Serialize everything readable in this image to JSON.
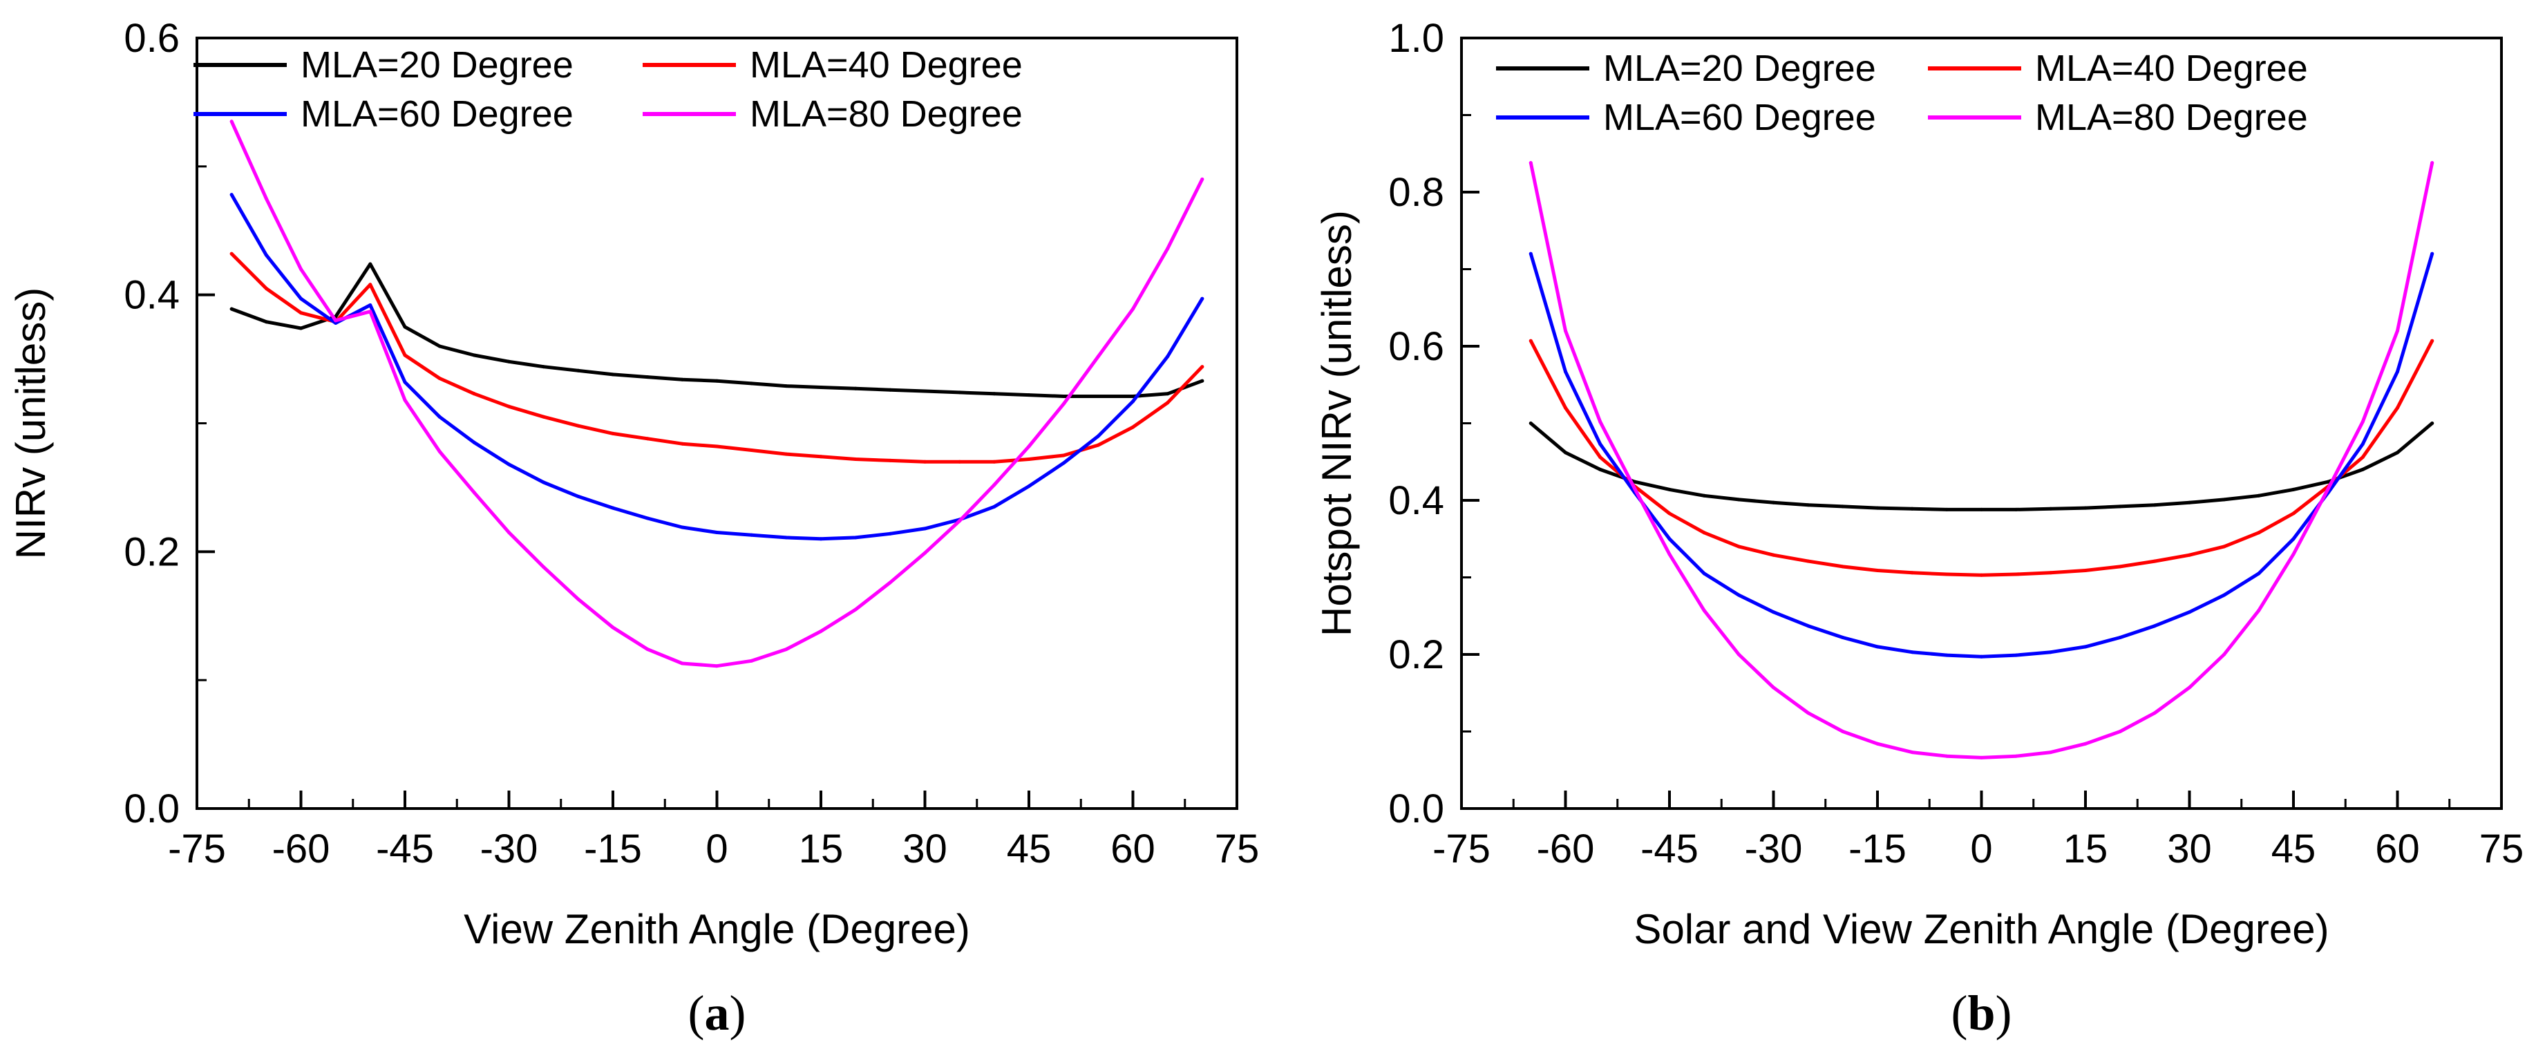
{
  "chart_data": [
    {
      "type": "line",
      "panel": "a",
      "caption": {
        "open": "(",
        "letter": "a",
        "close": ")"
      },
      "xlabel": "View Zenith Angle (Degree)",
      "ylabel": "NIRv (unitless)",
      "xlim": [
        -75,
        75
      ],
      "ylim": [
        0,
        0.6
      ],
      "xticks": [
        "-75",
        "-60",
        "-45",
        "-30",
        "-15",
        "0",
        "15",
        "30",
        "45",
        "60",
        "75"
      ],
      "yticks": [
        "0.0",
        "0.2",
        "0.4",
        "0.6"
      ],
      "x": [
        -70,
        -65,
        -60,
        -55,
        -50,
        -45,
        -40,
        -35,
        -30,
        -25,
        -20,
        -15,
        -10,
        -5,
        0,
        5,
        10,
        15,
        20,
        25,
        30,
        35,
        40,
        45,
        50,
        55,
        60,
        65,
        70
      ],
      "series": [
        {
          "name": "MLA=20 Degree",
          "color": "#000000",
          "values": [
            0.389,
            0.379,
            0.374,
            0.383,
            0.424,
            0.375,
            0.36,
            0.353,
            0.348,
            0.344,
            0.341,
            0.338,
            0.336,
            0.334,
            0.333,
            0.331,
            0.329,
            0.328,
            0.327,
            0.326,
            0.325,
            0.324,
            0.323,
            0.322,
            0.321,
            0.321,
            0.321,
            0.323,
            0.333
          ]
        },
        {
          "name": "MLA=40 Degree",
          "color": "#ff0000",
          "values": [
            0.432,
            0.405,
            0.386,
            0.379,
            0.408,
            0.353,
            0.335,
            0.323,
            0.313,
            0.305,
            0.298,
            0.292,
            0.288,
            0.284,
            0.282,
            0.279,
            0.276,
            0.274,
            0.272,
            0.271,
            0.27,
            0.27,
            0.27,
            0.272,
            0.275,
            0.283,
            0.297,
            0.316,
            0.344
          ]
        },
        {
          "name": "MLA=60 Degree",
          "color": "#0000ff",
          "values": [
            0.478,
            0.431,
            0.397,
            0.378,
            0.392,
            0.332,
            0.305,
            0.285,
            0.268,
            0.254,
            0.243,
            0.234,
            0.226,
            0.219,
            0.215,
            0.213,
            0.211,
            0.21,
            0.211,
            0.214,
            0.218,
            0.225,
            0.235,
            0.251,
            0.269,
            0.29,
            0.317,
            0.352,
            0.397
          ]
        },
        {
          "name": "MLA=80 Degree",
          "color": "#ff00ff",
          "values": [
            0.535,
            0.475,
            0.42,
            0.38,
            0.387,
            0.318,
            0.278,
            0.246,
            0.215,
            0.188,
            0.163,
            0.141,
            0.124,
            0.113,
            0.111,
            0.115,
            0.124,
            0.138,
            0.155,
            0.176,
            0.199,
            0.224,
            0.252,
            0.282,
            0.315,
            0.352,
            0.389,
            0.436,
            0.49
          ]
        }
      ]
    },
    {
      "type": "line",
      "panel": "b",
      "caption": {
        "open": "(",
        "letter": "b",
        "close": ")"
      },
      "xlabel": "Solar and View Zenith Angle (Degree)",
      "ylabel": "Hotspot NIRv (unitless)",
      "xlim": [
        -75,
        75
      ],
      "ylim": [
        0,
        1.0
      ],
      "xticks": [
        "-75",
        "-60",
        "-45",
        "-30",
        "-15",
        "0",
        "15",
        "30",
        "45",
        "60",
        "75"
      ],
      "yticks": [
        "0.0",
        "0.2",
        "0.4",
        "0.6",
        "0.8",
        "1.0"
      ],
      "x": [
        -65,
        -60,
        -55,
        -50,
        -45,
        -40,
        -35,
        -30,
        -25,
        -20,
        -15,
        -10,
        -5,
        0,
        5,
        10,
        15,
        20,
        25,
        30,
        35,
        40,
        45,
        50,
        55,
        60,
        65
      ],
      "series": [
        {
          "name": "MLA=20 Degree",
          "color": "#000000",
          "values": [
            0.5,
            0.462,
            0.44,
            0.424,
            0.414,
            0.406,
            0.401,
            0.397,
            0.394,
            0.392,
            0.39,
            0.389,
            0.388,
            0.388,
            0.388,
            0.389,
            0.39,
            0.392,
            0.394,
            0.397,
            0.401,
            0.406,
            0.414,
            0.424,
            0.44,
            0.462,
            0.5
          ]
        },
        {
          "name": "MLA=40 Degree",
          "color": "#ff0000",
          "values": [
            0.607,
            0.52,
            0.456,
            0.418,
            0.383,
            0.358,
            0.34,
            0.329,
            0.321,
            0.314,
            0.309,
            0.306,
            0.304,
            0.303,
            0.304,
            0.306,
            0.309,
            0.314,
            0.321,
            0.329,
            0.34,
            0.358,
            0.383,
            0.418,
            0.456,
            0.52,
            0.607
          ]
        },
        {
          "name": "MLA=60 Degree",
          "color": "#0000ff",
          "values": [
            0.72,
            0.567,
            0.473,
            0.41,
            0.35,
            0.305,
            0.277,
            0.255,
            0.237,
            0.222,
            0.21,
            0.203,
            0.199,
            0.197,
            0.199,
            0.203,
            0.21,
            0.222,
            0.237,
            0.255,
            0.277,
            0.305,
            0.35,
            0.41,
            0.473,
            0.567,
            0.72
          ]
        },
        {
          "name": "MLA=80 Degree",
          "color": "#ff00ff",
          "values": [
            0.838,
            0.62,
            0.502,
            0.415,
            0.33,
            0.257,
            0.2,
            0.157,
            0.124,
            0.1,
            0.084,
            0.073,
            0.068,
            0.066,
            0.068,
            0.073,
            0.084,
            0.1,
            0.124,
            0.157,
            0.2,
            0.257,
            0.33,
            0.415,
            0.502,
            0.62,
            0.838
          ]
        }
      ]
    }
  ]
}
